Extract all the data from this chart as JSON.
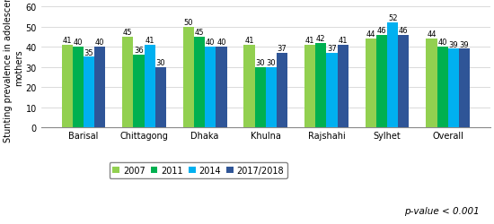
{
  "categories": [
    "Barisal",
    "Chittagong",
    "Dhaka",
    "Khulna",
    "Rajshahi",
    "Sylhet",
    "Overall"
  ],
  "series": {
    "2007": [
      41,
      45,
      50,
      41,
      41,
      44,
      44
    ],
    "2011": [
      40,
      36,
      45,
      30,
      42,
      46,
      40
    ],
    "2014": [
      35,
      41,
      40,
      30,
      37,
      52,
      39
    ],
    "2017/2018": [
      40,
      30,
      40,
      37,
      41,
      46,
      39
    ]
  },
  "colors": {
    "2007": "#92d050",
    "2011": "#00b050",
    "2014": "#00b0f0",
    "2017/2018": "#2f5597"
  },
  "ylabel": "Stunting prevalence in adolescent\nmothers",
  "ylim": [
    0,
    60
  ],
  "yticks": [
    0,
    10,
    20,
    30,
    40,
    50,
    60
  ],
  "legend_labels": [
    "2007",
    "2011",
    "2014",
    "2017/2018"
  ],
  "pvalue_text": "p-value < 0.001",
  "bar_width": 0.18,
  "fontsize_labels": 6.0,
  "fontsize_axis": 7.0,
  "fontsize_legend": 7.0,
  "fontsize_pvalue": 7.5,
  "background_color": "#ffffff"
}
